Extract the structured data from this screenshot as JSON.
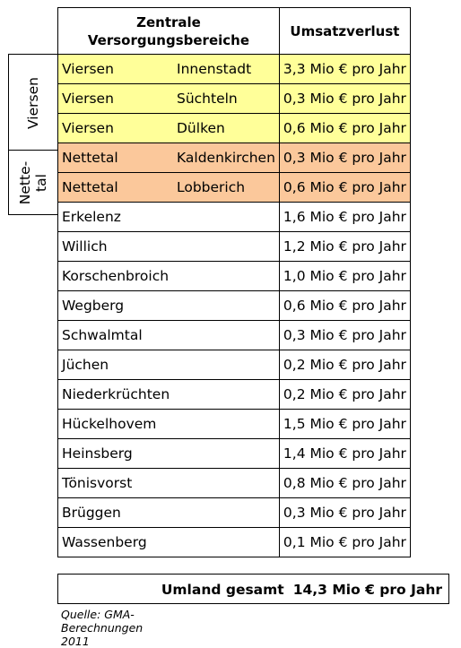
{
  "header": {
    "area_line1": "Zentrale",
    "area_line2": "Versorgungsbereiche",
    "loss": "Umsatzverlust"
  },
  "groups": {
    "viersen": "Viersen",
    "nettetal_line1": "Nette-",
    "nettetal_line2": "tal"
  },
  "rows": [
    {
      "city": "Viersen",
      "place": "Innenstadt",
      "loss": "3,3 Mio € pro Jahr"
    },
    {
      "city": "Viersen",
      "place": "Süchteln",
      "loss": "0,3 Mio € pro Jahr"
    },
    {
      "city": "Viersen",
      "place": "Dülken",
      "loss": "0,6 Mio € pro Jahr"
    },
    {
      "city": "Nettetal",
      "place": "Kaldenkirchen",
      "loss": "0,3 Mio € pro Jahr"
    },
    {
      "city": "Nettetal",
      "place": "Lobberich",
      "loss": "0,6 Mio € pro Jahr"
    },
    {
      "city": "Erkelenz",
      "place": "",
      "loss": "1,6 Mio € pro Jahr"
    },
    {
      "city": "Willich",
      "place": "",
      "loss": "1,2 Mio € pro Jahr"
    },
    {
      "city": "Korschenbroich",
      "place": "",
      "loss": "1,0 Mio € pro Jahr"
    },
    {
      "city": "Wegberg",
      "place": "",
      "loss": "0,6 Mio € pro Jahr"
    },
    {
      "city": "Schwalmtal",
      "place": "",
      "loss": "0,3 Mio € pro Jahr"
    },
    {
      "city": "Jüchen",
      "place": "",
      "loss": "0,2 Mio € pro Jahr"
    },
    {
      "city": "Niederkrüchten",
      "place": "",
      "loss": "0,2 Mio € pro Jahr"
    },
    {
      "city": "Hückelhovem",
      "place": "",
      "loss": "1,5 Mio € pro Jahr"
    },
    {
      "city": "Heinsberg",
      "place": "",
      "loss": "1,4 Mio € pro Jahr"
    },
    {
      "city": "Tönisvorst",
      "place": "",
      "loss": "0,8 Mio € pro Jahr"
    },
    {
      "city": "Brüggen",
      "place": "",
      "loss": "0,3 Mio € pro Jahr"
    },
    {
      "city": "Wassenberg",
      "place": "",
      "loss": "0,1 Mio € pro Jahr"
    }
  ],
  "total": {
    "label": "Umland gesamt",
    "value": "14,3 Mio € pro Jahr"
  },
  "source": "Quelle: GMA-Berechnungen 2011",
  "colors": {
    "viersen": "#ffff99",
    "nettetal": "#fbc89b"
  }
}
